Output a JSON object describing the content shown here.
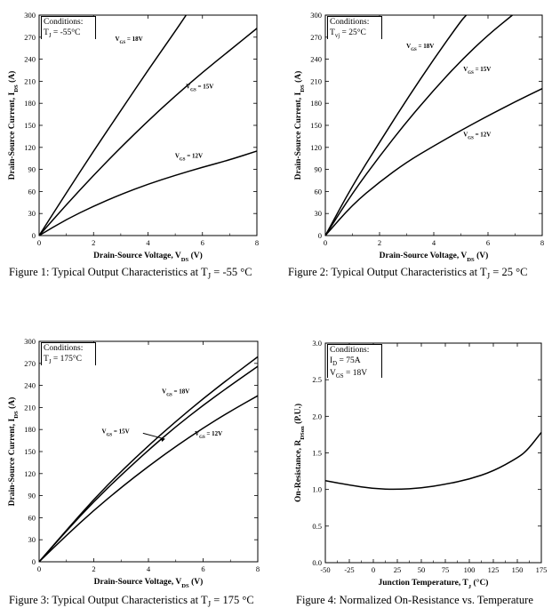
{
  "chart_data": [
    {
      "type": "line",
      "conditions_title": "Conditions:",
      "conditions": [
        "T_J = -55°C"
      ],
      "xlabel": "Drain-Source Voltage, V_DS (V)",
      "ylabel": "Drain-Source Current, I_DS (A)",
      "xlim": [
        0,
        8
      ],
      "ylim": [
        0,
        300
      ],
      "xticks": [
        "0",
        "2",
        "4",
        "6",
        "8"
      ],
      "yticks": [
        "0",
        "30",
        "60",
        "90",
        "120",
        "150",
        "180",
        "210",
        "240",
        "270",
        "300"
      ],
      "caption": "Figure 1: Typical Output Characteristics at T_J = -55 °C",
      "series": [
        {
          "name": "V_GS = 18V",
          "x": [
            0,
            1,
            2,
            3,
            4,
            5,
            5.4
          ],
          "y": [
            0,
            58,
            115,
            170,
            225,
            278,
            300
          ]
        },
        {
          "name": "V_GS = 15V",
          "x": [
            0,
            1,
            2,
            3,
            4,
            5,
            6,
            7,
            8
          ],
          "y": [
            0,
            42,
            82,
            120,
            156,
            190,
            222,
            252,
            282
          ]
        },
        {
          "name": "V_GS = 12V",
          "x": [
            0,
            1,
            2,
            3,
            4,
            5,
            6,
            7,
            8
          ],
          "y": [
            0,
            22,
            40,
            56,
            70,
            82,
            93,
            103,
            115
          ]
        }
      ],
      "series_labels": [
        {
          "text": "V_GS = 18V",
          "x": 3.3,
          "y": 265
        },
        {
          "text": "V_GS = 15V",
          "x": 5.9,
          "y": 200
        },
        {
          "text": "V_GS = 12V",
          "x": 5.5,
          "y": 106
        }
      ]
    },
    {
      "type": "line",
      "conditions_title": "Conditions:",
      "conditions": [
        "T_vj = 25°C"
      ],
      "xlabel": "Drain-Source Voltage, V_DS (V)",
      "ylabel": "Drain-Source Current, I_DS (A)",
      "xlim": [
        0,
        8
      ],
      "ylim": [
        0,
        300
      ],
      "xticks": [
        "0",
        "2",
        "4",
        "6",
        "8"
      ],
      "yticks": [
        "0",
        "30",
        "60",
        "90",
        "120",
        "150",
        "180",
        "210",
        "240",
        "270",
        "300"
      ],
      "caption": "Figure 2: Typical Output Characteristics at T_J = 25 °C",
      "series": [
        {
          "name": "V_GS = 18V",
          "x": [
            0,
            1,
            2,
            3,
            4,
            5,
            5.2
          ],
          "y": [
            0,
            68,
            127,
            185,
            240,
            292,
            300
          ]
        },
        {
          "name": "V_GS = 15V",
          "x": [
            0,
            1,
            2,
            3,
            4,
            5,
            6,
            6.9
          ],
          "y": [
            0,
            58,
            108,
            155,
            198,
            238,
            273,
            300
          ]
        },
        {
          "name": "V_GS = 12V",
          "x": [
            0,
            1,
            2,
            3,
            4,
            5,
            6,
            7,
            8
          ],
          "y": [
            0,
            42,
            73,
            100,
            122,
            143,
            163,
            182,
            200
          ]
        }
      ],
      "series_labels": [
        {
          "text": "V_GS = 18V",
          "x": 3.5,
          "y": 255
        },
        {
          "text": "V_GS = 15V",
          "x": 5.6,
          "y": 224
        },
        {
          "text": "V_GS = 12V",
          "x": 5.6,
          "y": 135
        }
      ]
    },
    {
      "type": "line",
      "conditions_title": "Conditions:",
      "conditions": [
        "T_J = 175°C"
      ],
      "xlabel": "Drain-Source Voltage, V_DS (V)",
      "ylabel": "Drain-Source Current, I_DS (A)",
      "xlim": [
        0,
        8
      ],
      "ylim": [
        0,
        300
      ],
      "xticks": [
        "0",
        "2",
        "4",
        "6",
        "8"
      ],
      "yticks": [
        "0",
        "30",
        "60",
        "90",
        "120",
        "150",
        "180",
        "210",
        "240",
        "270",
        "300"
      ],
      "caption": "Figure 3: Typical Output Characteristics at T_J = 175 °C",
      "series": [
        {
          "name": "V_GS = 18V",
          "x": [
            0,
            1,
            2,
            3,
            4,
            5,
            6,
            7,
            8
          ],
          "y": [
            0,
            43,
            85,
            123,
            158,
            191,
            222,
            251,
            279
          ]
        },
        {
          "name": "V_GS = 15V",
          "x": [
            0,
            1,
            2,
            3,
            4,
            5,
            6,
            7,
            8
          ],
          "y": [
            0,
            42,
            82,
            118,
            152,
            184,
            213,
            240,
            266
          ]
        },
        {
          "name": "V_GS = 12V",
          "x": [
            0,
            1,
            2,
            3,
            4,
            5,
            6,
            7,
            8
          ],
          "y": [
            0,
            36,
            70,
            101,
            130,
            157,
            182,
            205,
            226
          ]
        }
      ],
      "series_labels": [
        {
          "text": "V_GS = 18V",
          "x": 5.0,
          "y": 229
        },
        {
          "text": "V_GS = 15V",
          "x": 2.8,
          "y": 175
        },
        {
          "text": "V_GS = 12V",
          "x": 6.2,
          "y": 172
        }
      ]
    },
    {
      "type": "line",
      "conditions_title": "Conditions:",
      "conditions": [
        "I_D = 75A",
        "V_GS = 18V"
      ],
      "xlabel": "Junction Temperature, T_J (°C)",
      "ylabel": "On-Resistance, R_DSon (P.U.)",
      "xlim": [
        -50,
        175
      ],
      "ylim": [
        0,
        3
      ],
      "xticks": [
        "-50",
        "-25",
        "0",
        "25",
        "50",
        "75",
        "100",
        "125",
        "150",
        "175"
      ],
      "yticks": [
        "0.0",
        "0.5",
        "1.0",
        "1.5",
        "2.0",
        "2.5",
        "3.0"
      ],
      "caption": "Figure 4: Normalized On-Resistance vs. Temperature",
      "series": [
        {
          "name": "",
          "x": [
            -50,
            -25,
            0,
            25,
            50,
            75,
            100,
            125,
            150,
            160,
            175
          ],
          "y": [
            1.12,
            1.06,
            1.01,
            1.0,
            1.02,
            1.07,
            1.14,
            1.25,
            1.43,
            1.53,
            1.78
          ]
        }
      ],
      "series_labels": []
    }
  ]
}
